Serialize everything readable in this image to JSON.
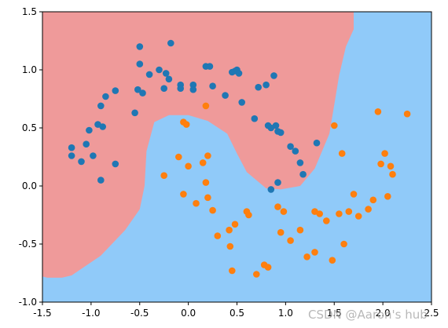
{
  "chart_data": {
    "type": "scatter",
    "title": "",
    "xlabel": "",
    "ylabel": "",
    "xlim": [
      -1.5,
      2.5
    ],
    "ylim": [
      -1.0,
      1.5
    ],
    "xticks": [
      "-1.5",
      "-1.0",
      "-0.5",
      "0.0",
      "0.5",
      "1.0",
      "1.5",
      "2.0",
      "2.5"
    ],
    "yticks": [
      "-1.0",
      "-0.5",
      "0.0",
      "0.5",
      "1.0",
      "1.5"
    ],
    "grid": false,
    "legend": "none",
    "background_regions": [
      {
        "class": 0,
        "color": "#ef9a9a"
      },
      {
        "class": 1,
        "color": "#90caf9"
      }
    ],
    "decision_boundary": [
      [
        -1.5,
        -0.78
      ],
      [
        -1.45,
        -0.79
      ],
      [
        -1.3,
        -0.79
      ],
      [
        -1.2,
        -0.77
      ],
      [
        -0.9,
        -0.6
      ],
      [
        -0.65,
        -0.38
      ],
      [
        -0.5,
        -0.2
      ],
      [
        -0.45,
        0.0
      ],
      [
        -0.43,
        0.3
      ],
      [
        -0.35,
        0.55
      ],
      [
        -0.2,
        0.61
      ],
      [
        0.0,
        0.61
      ],
      [
        0.2,
        0.56
      ],
      [
        0.4,
        0.45
      ],
      [
        0.5,
        0.28
      ],
      [
        0.6,
        0.12
      ],
      [
        0.8,
        -0.02
      ],
      [
        0.95,
        -0.03
      ],
      [
        1.15,
        0.0
      ],
      [
        1.3,
        0.15
      ],
      [
        1.45,
        0.45
      ],
      [
        1.5,
        0.7
      ],
      [
        1.55,
        0.95
      ],
      [
        1.62,
        1.2
      ],
      [
        1.7,
        1.35
      ],
      [
        1.7,
        1.5
      ]
    ],
    "series": [
      {
        "class": 0,
        "color": "#1f77b4",
        "points": [
          [
            -1.2,
            0.33
          ],
          [
            -1.2,
            0.26
          ],
          [
            -1.1,
            0.21
          ],
          [
            -1.05,
            0.36
          ],
          [
            -1.02,
            0.48
          ],
          [
            -0.98,
            0.26
          ],
          [
            -0.93,
            0.53
          ],
          [
            -0.9,
            0.69
          ],
          [
            -0.9,
            0.05
          ],
          [
            -0.88,
            0.51
          ],
          [
            -0.85,
            0.77
          ],
          [
            -0.75,
            0.82
          ],
          [
            -0.75,
            0.19
          ],
          [
            -0.55,
            0.63
          ],
          [
            -0.52,
            0.83
          ],
          [
            -0.5,
            1.2
          ],
          [
            -0.5,
            1.05
          ],
          [
            -0.47,
            0.8
          ],
          [
            -0.4,
            0.96
          ],
          [
            -0.3,
            1.0
          ],
          [
            -0.25,
            0.84
          ],
          [
            -0.23,
            0.97
          ],
          [
            -0.2,
            0.92
          ],
          [
            -0.18,
            1.23
          ],
          [
            -0.08,
            0.87
          ],
          [
            -0.08,
            0.84
          ],
          [
            0.05,
            0.87
          ],
          [
            0.05,
            0.83
          ],
          [
            0.18,
            1.03
          ],
          [
            0.22,
            1.03
          ],
          [
            0.25,
            0.86
          ],
          [
            0.38,
            0.78
          ],
          [
            0.45,
            0.98
          ],
          [
            0.48,
            0.99
          ],
          [
            0.5,
            1.0
          ],
          [
            0.52,
            0.97
          ],
          [
            0.55,
            0.72
          ],
          [
            0.68,
            0.58
          ],
          [
            0.72,
            0.85
          ],
          [
            0.8,
            0.87
          ],
          [
            0.82,
            0.52
          ],
          [
            0.85,
            0.5
          ],
          [
            0.88,
            0.95
          ],
          [
            0.9,
            0.52
          ],
          [
            0.92,
            0.47
          ],
          [
            0.95,
            0.46
          ],
          [
            1.05,
            0.34
          ],
          [
            1.1,
            0.3
          ],
          [
            1.15,
            0.2
          ],
          [
            1.18,
            0.1
          ],
          [
            1.32,
            0.37
          ],
          [
            0.85,
            -0.03
          ],
          [
            0.92,
            0.03
          ]
        ]
      },
      {
        "class": 1,
        "color": "#ff7f0e",
        "points": [
          [
            0.18,
            0.69
          ],
          [
            -0.05,
            0.55
          ],
          [
            -0.02,
            0.53
          ],
          [
            0.0,
            0.17
          ],
          [
            -0.1,
            0.25
          ],
          [
            -0.25,
            0.09
          ],
          [
            -0.05,
            -0.07
          ],
          [
            0.08,
            -0.15
          ],
          [
            0.15,
            0.2
          ],
          [
            0.18,
            0.03
          ],
          [
            0.2,
            0.26
          ],
          [
            0.2,
            -0.1
          ],
          [
            0.25,
            -0.21
          ],
          [
            0.3,
            -0.43
          ],
          [
            0.42,
            -0.38
          ],
          [
            0.43,
            -0.52
          ],
          [
            0.45,
            -0.73
          ],
          [
            0.48,
            -0.33
          ],
          [
            0.6,
            -0.22
          ],
          [
            0.62,
            -0.25
          ],
          [
            0.7,
            -0.76
          ],
          [
            0.78,
            -0.68
          ],
          [
            0.82,
            -0.7
          ],
          [
            0.92,
            -0.18
          ],
          [
            0.95,
            -0.4
          ],
          [
            0.98,
            -0.22
          ],
          [
            1.05,
            -0.47
          ],
          [
            1.15,
            -0.38
          ],
          [
            1.22,
            -0.61
          ],
          [
            1.3,
            -0.57
          ],
          [
            1.3,
            -0.22
          ],
          [
            1.35,
            -0.24
          ],
          [
            1.42,
            -0.3
          ],
          [
            1.48,
            -0.64
          ],
          [
            1.5,
            0.52
          ],
          [
            1.55,
            -0.24
          ],
          [
            1.58,
            0.28
          ],
          [
            1.6,
            -0.5
          ],
          [
            1.65,
            -0.22
          ],
          [
            1.7,
            -0.07
          ],
          [
            1.75,
            -0.26
          ],
          [
            1.85,
            -0.2
          ],
          [
            1.9,
            -0.12
          ],
          [
            1.95,
            0.64
          ],
          [
            1.98,
            0.19
          ],
          [
            2.02,
            0.28
          ],
          [
            2.05,
            -0.09
          ],
          [
            2.08,
            0.17
          ],
          [
            2.1,
            0.1
          ],
          [
            2.25,
            0.62
          ]
        ]
      }
    ]
  },
  "watermark": "CSDN @Aaron's hub"
}
